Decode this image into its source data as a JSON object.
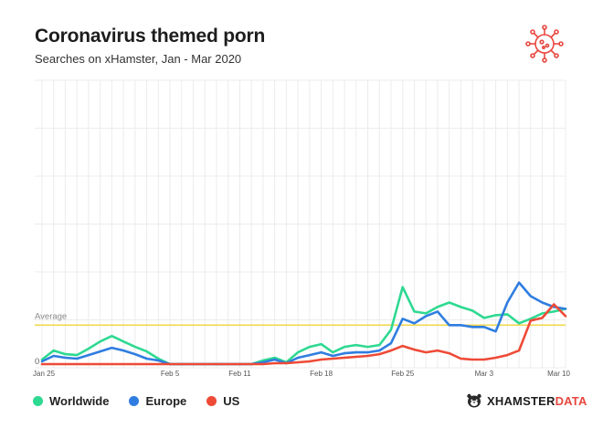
{
  "header": {
    "title": "Coronavirus themed porn",
    "subtitle": "Searches on xHamster, Jan - Mar 2020"
  },
  "icons": {
    "top_right": "coronavirus-icon",
    "brand": "hamster-icon"
  },
  "brand": {
    "name": "XHAMSTER",
    "suffix": "DATA"
  },
  "colors": {
    "worldwide": "#2ed991",
    "europe": "#2f7de0",
    "us": "#ee4a36",
    "average": "#f0d64b",
    "virus": "#e8473f"
  },
  "chart_data": {
    "type": "line",
    "x": [
      "Jan 25",
      "Jan 26",
      "Jan 27",
      "Jan 28",
      "Jan 29",
      "Jan 30",
      "Jan 31",
      "Feb 1",
      "Feb 2",
      "Feb 3",
      "Feb 4",
      "Feb 5",
      "Feb 6",
      "Feb 7",
      "Feb 8",
      "Feb 9",
      "Feb 10",
      "Feb 11",
      "Feb 12",
      "Feb 13",
      "Feb 14",
      "Feb 15",
      "Feb 16",
      "Feb 17",
      "Feb 18",
      "Feb 19",
      "Feb 20",
      "Feb 21",
      "Feb 22",
      "Feb 23",
      "Feb 24",
      "Feb 25",
      "Feb 26",
      "Feb 27",
      "Feb 28",
      "Feb 29",
      "Mar 1",
      "Mar 2",
      "Mar 3",
      "Mar 4",
      "Mar 5",
      "Mar 6",
      "Mar 7",
      "Mar 8",
      "Mar 9",
      "Mar 10"
    ],
    "xticks": [
      "Jan 25",
      "Feb 5",
      "Feb 11",
      "Feb 18",
      "Feb 25",
      "Mar 3",
      "Mar 10"
    ],
    "ylim": [
      0,
      310
    ],
    "yticks": [
      {
        "value": 0,
        "label": "0"
      }
    ],
    "average": {
      "value": 40,
      "label": "Average"
    },
    "grid": true,
    "series": [
      {
        "name": "Worldwide",
        "values": [
          2,
          12,
          8,
          7,
          14,
          22,
          28,
          22,
          16,
          11,
          3,
          -3,
          -3,
          -3,
          -3,
          -3,
          -3,
          -3,
          -3,
          1,
          4,
          -1,
          10,
          16,
          19,
          10,
          16,
          18,
          16,
          18,
          35,
          82,
          55,
          53,
          60,
          65,
          60,
          56,
          48,
          51,
          52,
          42,
          47,
          53,
          55,
          58
        ]
      },
      {
        "name": "Europe",
        "values": [
          0,
          6,
          4,
          3,
          7,
          11,
          15,
          12,
          8,
          3,
          1,
          -3,
          -3,
          -3,
          -3,
          -3,
          -3,
          -3,
          -3,
          -1,
          2,
          -2,
          4,
          7,
          10,
          6,
          9,
          10,
          10,
          12,
          20,
          47,
          42,
          50,
          55,
          40,
          40,
          38,
          38,
          33,
          65,
          87,
          72,
          65,
          60,
          58
        ]
      },
      {
        "name": "US",
        "values": [
          -3,
          -3,
          -3,
          -3,
          -3,
          -3,
          -3,
          -3,
          -3,
          -3,
          -3,
          -3,
          -3,
          -3,
          -3,
          -3,
          -3,
          -3,
          -3,
          -3,
          -2,
          -2,
          -1,
          0,
          2,
          3,
          4,
          5,
          6,
          8,
          12,
          17,
          13,
          10,
          12,
          9,
          3,
          2,
          2,
          4,
          7,
          12,
          45,
          48,
          63,
          50
        ]
      }
    ]
  },
  "legend": [
    {
      "label": "Worldwide"
    },
    {
      "label": "Europe"
    },
    {
      "label": "US"
    }
  ]
}
